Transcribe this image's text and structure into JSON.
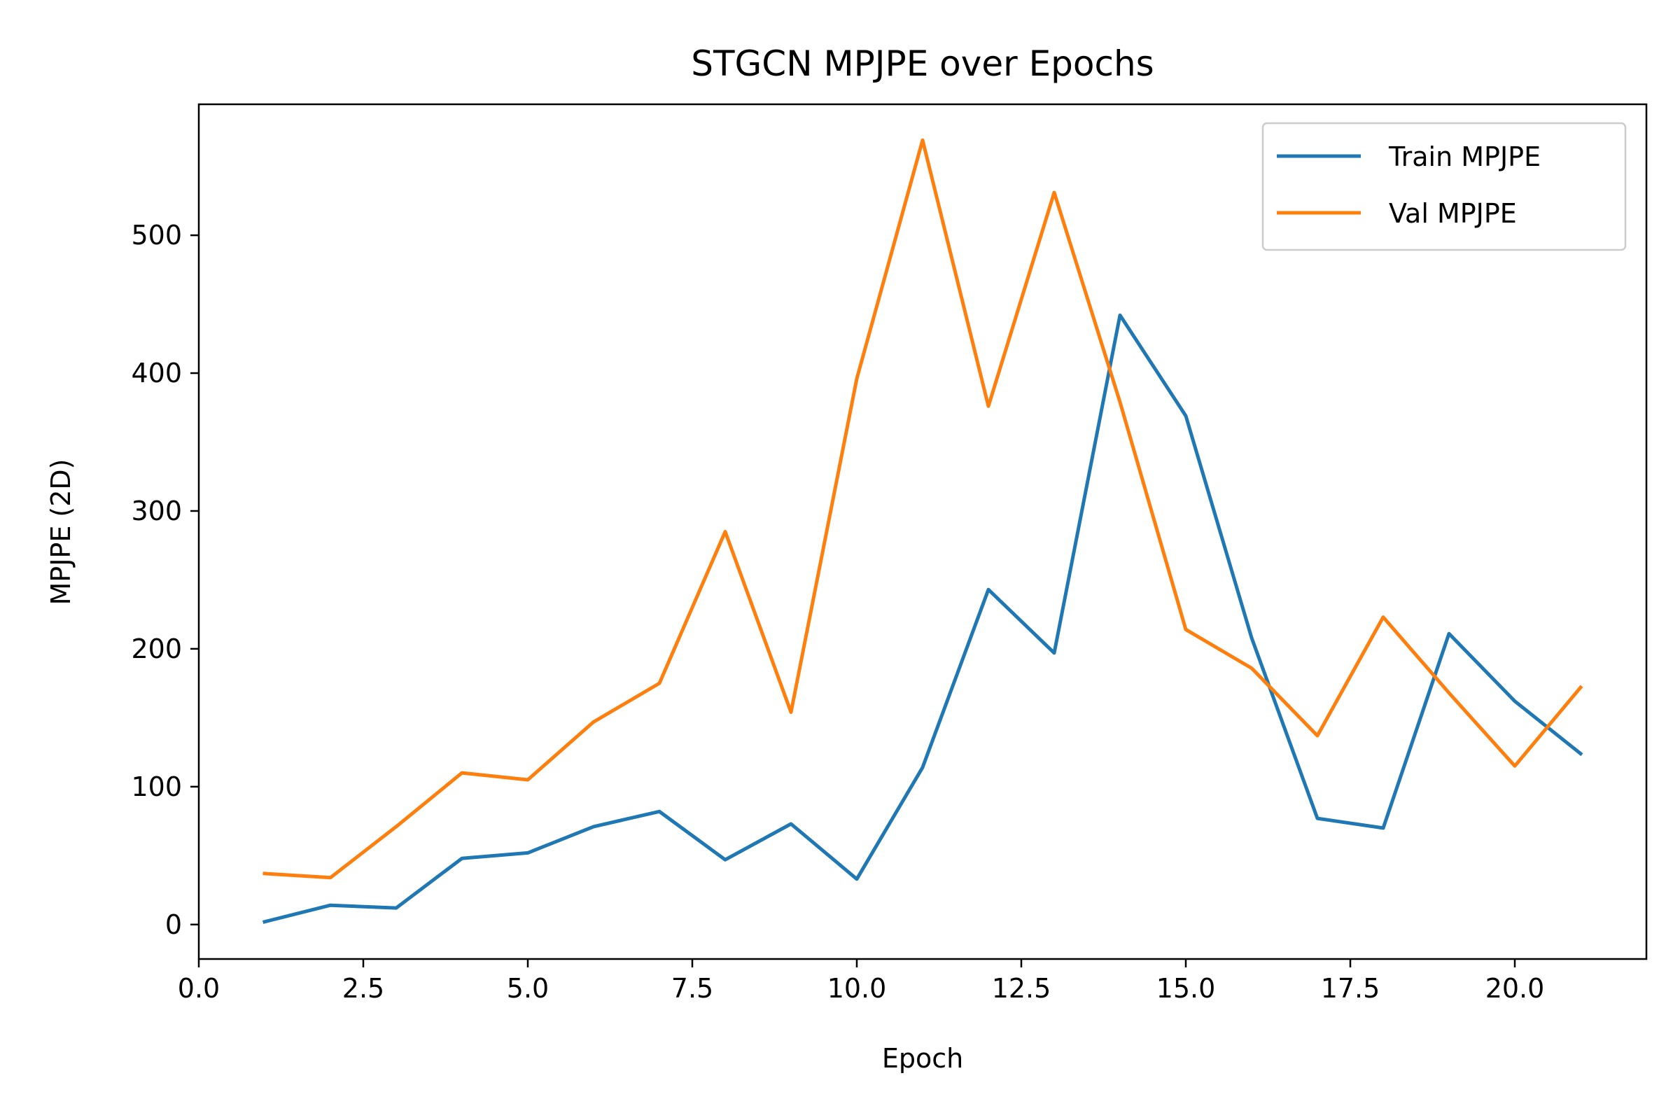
{
  "chart_data": {
    "type": "line",
    "title": "STGCN MPJPE over Epochs",
    "xlabel": "Epoch",
    "ylabel": "MPJPE (2D)",
    "x": [
      1,
      2,
      3,
      4,
      5,
      6,
      7,
      8,
      9,
      10,
      11,
      12,
      13,
      14,
      15,
      16,
      17,
      18,
      19,
      20,
      21
    ],
    "series": [
      {
        "name": "Train MPJPE",
        "color": "#1f77b4",
        "values": [
          2,
          14,
          12,
          48,
          52,
          71,
          82,
          47,
          73,
          33,
          114,
          243,
          197,
          442,
          369,
          208,
          77,
          70,
          211,
          162,
          124
        ]
      },
      {
        "name": "Val MPJPE",
        "color": "#ff7f0e",
        "values": [
          37,
          34,
          71,
          110,
          105,
          147,
          175,
          285,
          154,
          396,
          569,
          376,
          531,
          379,
          214,
          186,
          137,
          223,
          168,
          115,
          172
        ]
      }
    ],
    "xlim": [
      0,
      22
    ],
    "ylim": [
      -25,
      595
    ],
    "xticks": [
      "0.0",
      "2.5",
      "5.0",
      "7.5",
      "10.0",
      "12.5",
      "15.0",
      "17.5",
      "20.0"
    ],
    "yticks": [
      "0",
      "100",
      "200",
      "300",
      "400",
      "500"
    ],
    "grid": false,
    "legend_position": "top-right"
  }
}
